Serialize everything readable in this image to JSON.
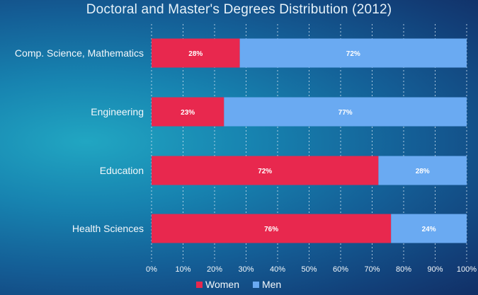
{
  "chart_data": {
    "type": "bar",
    "orientation": "horizontal",
    "stacked": true,
    "title": "Doctoral and Master's Degrees Distribution (2012)",
    "categories": [
      "Comp. Science, Mathematics",
      "Engineering",
      "Education",
      "Health Sciences"
    ],
    "series": [
      {
        "name": "Women",
        "color": "#e8284e",
        "values": [
          28,
          23,
          72,
          76
        ],
        "labels": [
          "28%",
          "23%",
          "72%",
          "76%"
        ]
      },
      {
        "name": "Men",
        "color": "#6aaaf2",
        "values": [
          72,
          77,
          28,
          24
        ],
        "labels": [
          "72%",
          "77%",
          "28%",
          "24%"
        ]
      }
    ],
    "xlim": [
      0,
      100
    ],
    "xticks": [
      0,
      10,
      20,
      30,
      40,
      50,
      60,
      70,
      80,
      90,
      100
    ],
    "xtick_labels": [
      "0%",
      "10%",
      "20%",
      "30%",
      "40%",
      "50%",
      "60%",
      "70%",
      "80%",
      "90%",
      "100%"
    ],
    "grid": "vertical-dashed",
    "legend": "bottom-center"
  }
}
